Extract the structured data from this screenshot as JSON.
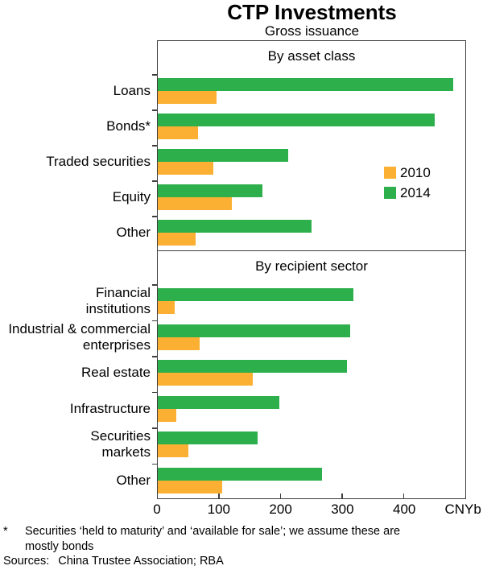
{
  "chart_data": {
    "type": "bar",
    "orientation": "horizontal",
    "title": "CTP Investments",
    "subtitle": "Gross issuance",
    "unit_label": "CNYb",
    "xlim": [
      0,
      500
    ],
    "xticks": [
      0,
      100,
      200,
      300,
      400
    ],
    "grid": false,
    "legend_position": "right-middle-of-top-panel",
    "bar_order_top_to_bottom": [
      "2014",
      "2010"
    ],
    "series_colors": {
      "2010": "#FBB034",
      "2014": "#2DB04B"
    },
    "legend": [
      {
        "name": "2010",
        "color": "#FBB034"
      },
      {
        "name": "2014",
        "color": "#2DB04B"
      }
    ],
    "panels": [
      {
        "label": "By asset class",
        "categories": [
          "Loans",
          "Bonds*",
          "Traded securities",
          "Equity",
          "Other"
        ],
        "series": [
          {
            "name": "2010",
            "values": [
              95,
              65,
              90,
              120,
              62
            ]
          },
          {
            "name": "2014",
            "values": [
              480,
              450,
              212,
              170,
              250
            ]
          }
        ]
      },
      {
        "label": "By recipient sector",
        "categories": [
          "Financial\ninstitutions",
          "Industrial & commercial\nenterprises",
          "Real estate",
          "Infrastructure",
          "Securities\nmarkets",
          "Other"
        ],
        "series": [
          {
            "name": "2010",
            "values": [
              28,
              68,
              155,
              30,
              50,
              105
            ]
          },
          {
            "name": "2014",
            "values": [
              318,
              313,
              307,
              198,
              162,
              267
            ]
          }
        ]
      }
    ]
  },
  "footer": {
    "footnote_marker": "*",
    "footnote_text": "Securities ‘held to maturity’ and ‘available for sale’; we assume these are mostly bonds",
    "sources_label": "Sources:",
    "sources_text": "China Trustee Association; RBA"
  },
  "colors": {
    "bar_2010": "#FBB034",
    "bar_2014": "#2DB04B",
    "axis": "#3F3F3F",
    "text": "#000000",
    "background": "#FFFFFF"
  }
}
